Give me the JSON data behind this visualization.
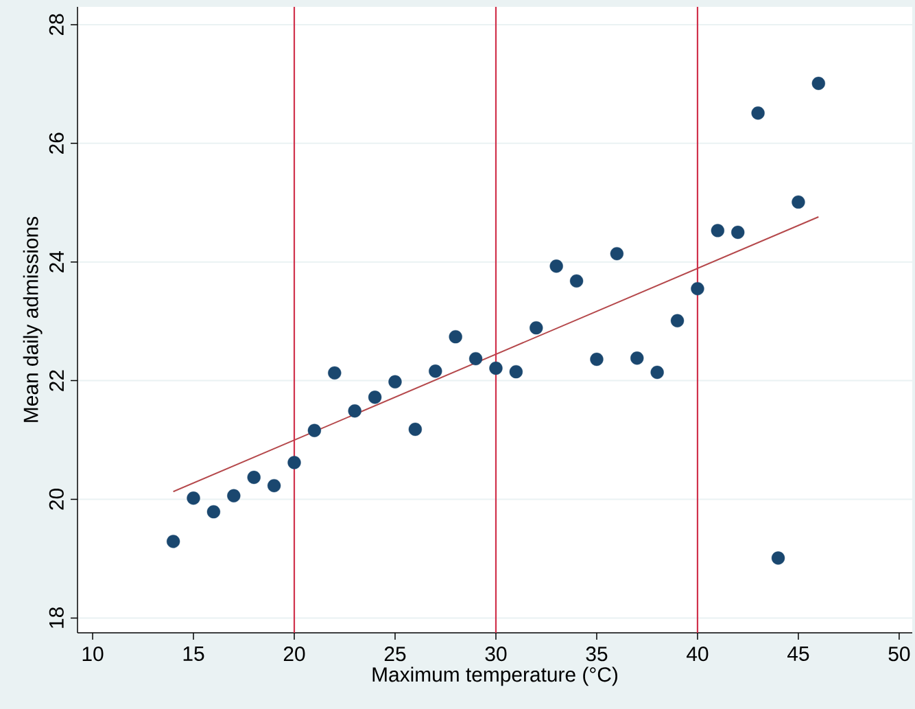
{
  "chart_data": {
    "type": "scatter",
    "xlabel": "Maximum temperature (°C)",
    "ylabel": "Mean daily admissions",
    "xlim": [
      9.25,
      50.65
    ],
    "ylim": [
      17.75,
      28.3
    ],
    "xticks": [
      10,
      15,
      20,
      25,
      30,
      35,
      40,
      45,
      50
    ],
    "yticks": [
      18,
      20,
      22,
      24,
      26,
      28
    ],
    "grid": "y",
    "series": [
      {
        "color": "#1a476f",
        "marker": "circle",
        "x": [
          14,
          15,
          16,
          17,
          18,
          19,
          20,
          21,
          22,
          23,
          24,
          25,
          26,
          27,
          28,
          29,
          30,
          31,
          32,
          33,
          34,
          35,
          36,
          37,
          38,
          39,
          40,
          41,
          42,
          43,
          44,
          45,
          46
        ],
        "values": [
          19.29,
          20.02,
          19.79,
          20.06,
          20.37,
          20.23,
          20.62,
          21.16,
          22.13,
          21.49,
          21.72,
          21.98,
          21.18,
          22.16,
          22.74,
          22.37,
          22.21,
          22.15,
          22.89,
          23.93,
          23.68,
          22.36,
          24.14,
          22.38,
          22.14,
          23.01,
          23.55,
          24.53,
          24.5,
          26.51,
          19.01,
          25.01,
          27.01
        ]
      },
      {
        "type": "line",
        "marker": "none",
        "color": "#b5484b",
        "x": [
          14,
          46
        ],
        "values": [
          20.13,
          24.76
        ]
      }
    ],
    "ref_lines": [
      {
        "axis": "x",
        "value": 20,
        "color": "#d0314b"
      },
      {
        "axis": "x",
        "value": 30,
        "color": "#d0314b"
      },
      {
        "axis": "x",
        "value": 40,
        "color": "#d0314b"
      }
    ]
  }
}
